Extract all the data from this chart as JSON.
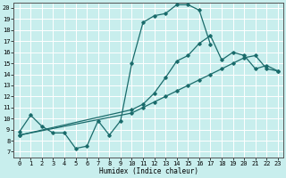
{
  "xlabel": "Humidex (Indice chaleur)",
  "bg_color": "#c8eeed",
  "line_color": "#1a6b6b",
  "grid_color": "#ffffff",
  "xlim": [
    -0.5,
    23.5
  ],
  "ylim": [
    6.5,
    20.5
  ],
  "xticks": [
    0,
    1,
    2,
    3,
    4,
    5,
    6,
    7,
    8,
    9,
    10,
    11,
    12,
    13,
    14,
    15,
    16,
    17,
    18,
    19,
    20,
    21,
    22,
    23
  ],
  "yticks": [
    7,
    8,
    9,
    10,
    11,
    12,
    13,
    14,
    15,
    16,
    17,
    18,
    19,
    20
  ],
  "curve1_x": [
    0,
    1,
    2,
    3,
    4,
    5,
    6,
    7,
    8,
    9,
    10,
    11,
    12,
    13,
    14,
    15,
    16,
    17
  ],
  "curve1_y": [
    8.8,
    10.3,
    9.3,
    8.7,
    8.7,
    7.3,
    7.5,
    9.8,
    8.5,
    9.8,
    15.0,
    18.7,
    19.3,
    19.5,
    20.3,
    20.3,
    19.8,
    16.7
  ],
  "curve2_x": [
    0,
    10,
    11,
    12,
    13,
    14,
    15,
    16,
    17,
    18,
    19,
    20,
    21,
    22,
    23
  ],
  "curve2_y": [
    8.5,
    10.5,
    11.0,
    11.5,
    12.0,
    12.5,
    13.0,
    13.5,
    14.0,
    14.5,
    15.0,
    15.5,
    15.7,
    14.5,
    14.3
  ],
  "curve3_x": [
    0,
    10,
    11,
    12,
    13,
    14,
    15,
    16,
    17,
    18,
    19,
    20,
    21,
    22,
    23
  ],
  "curve3_y": [
    8.5,
    10.8,
    11.3,
    12.3,
    13.7,
    15.2,
    15.7,
    16.8,
    17.5,
    15.3,
    16.0,
    15.7,
    14.5,
    14.8,
    14.3
  ]
}
